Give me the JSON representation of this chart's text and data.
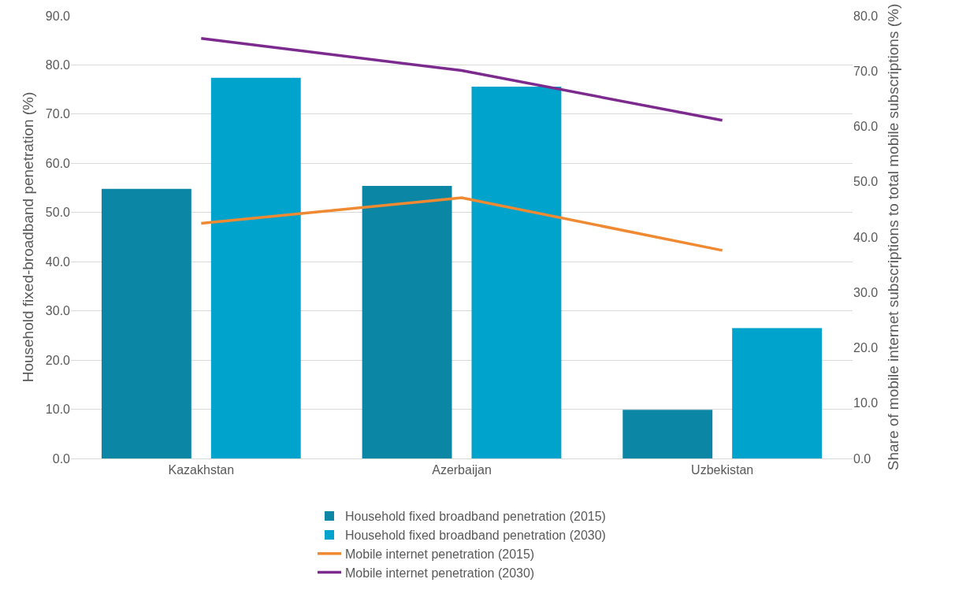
{
  "chart_data": {
    "type": "bar",
    "categories": [
      "Kazakhstan",
      "Azerbaijan",
      "Uzbekistan"
    ],
    "ylabel": "Household fixed-broadband penetration (%)",
    "y2label": "Share of mobile internet subscriptions to total mobile subscriptions (%)",
    "series": [
      {
        "name": "Household fixed broadband penetration (2015)",
        "color": "#0b87a5",
        "values": [
          54.8,
          55.4,
          9.9
        ]
      },
      {
        "name": "Household fixed broadband penetration (2030)",
        "color": "#00a3cc",
        "values": [
          77.4,
          75.6,
          26.5
        ]
      },
      {
        "name": "Mobile internet penetration (2015)",
        "type": "line",
        "axis": "y2",
        "color": "#ef8a32",
        "values": [
          42.5,
          47.1,
          37.6
        ]
      },
      {
        "name": "Mobile internet penetration (2030)",
        "type": "line",
        "axis": "y2",
        "color": "#7d2a8f",
        "values": [
          75.9,
          70.1,
          61.1
        ]
      }
    ],
    "ylim": [
      0,
      90
    ],
    "yticks": [
      {
        "value": 0,
        "label": "0.0"
      },
      {
        "value": 10,
        "label": "10.0"
      },
      {
        "value": 20,
        "label": "20.0"
      },
      {
        "value": 30,
        "label": "30.0"
      },
      {
        "value": 40,
        "label": "40.0"
      },
      {
        "value": 50,
        "label": "50.0"
      },
      {
        "value": 60,
        "label": "60.0"
      },
      {
        "value": 70,
        "label": "70.0"
      },
      {
        "value": 80,
        "label": "80.0"
      },
      {
        "value": 90,
        "label": "90.0"
      }
    ],
    "y2lim": [
      0,
      80
    ],
    "y2ticks": [
      {
        "value": 0,
        "label": "0.0"
      },
      {
        "value": 10,
        "label": "10.0"
      },
      {
        "value": 20,
        "label": "20.0"
      },
      {
        "value": 30,
        "label": "30.0"
      },
      {
        "value": 40,
        "label": "40.0"
      },
      {
        "value": 50,
        "label": "50.0"
      },
      {
        "value": 60,
        "label": "60.0"
      },
      {
        "value": 70,
        "label": "70.0"
      },
      {
        "value": 80,
        "label": "80.0"
      }
    ],
    "grid": "y",
    "legend": "bottom",
    "line_style": "solid",
    "marker": "none"
  }
}
